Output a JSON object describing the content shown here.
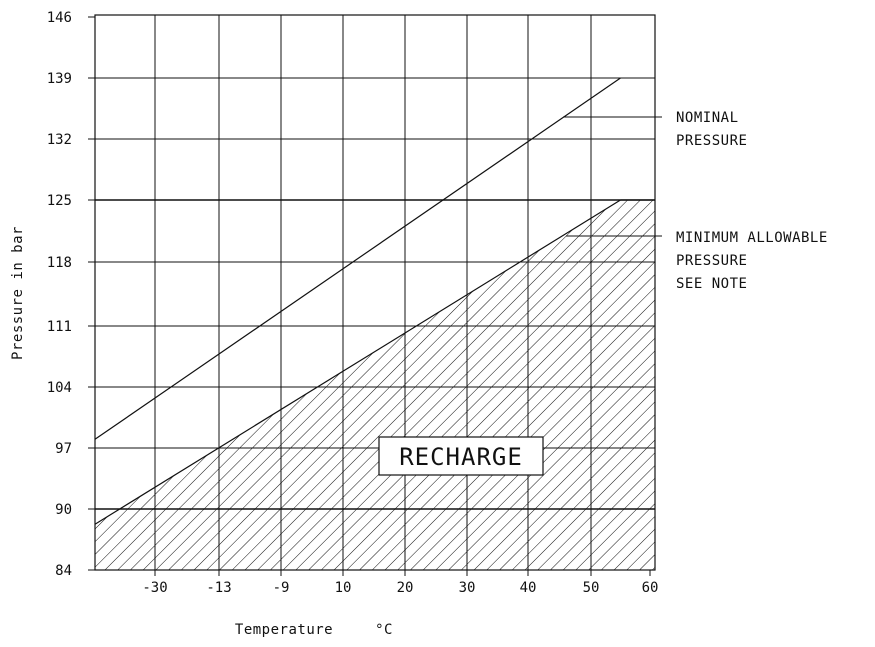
{
  "chart_data": {
    "type": "line",
    "title": "",
    "xlabel": "Temperature",
    "xunit": "°C",
    "ylabel": "Pressure in bar",
    "x_tick_labels": [
      "-30",
      "-13",
      "-9",
      "10",
      "20",
      "30",
      "40",
      "50",
      "60"
    ],
    "y_tick_labels": [
      "84",
      "90",
      "97",
      "104",
      "111",
      "118",
      "125",
      "132",
      "139",
      "146"
    ],
    "series": [
      {
        "label": "NOMINAL PRESSURE",
        "points": [
          [
            "",
            "98"
          ],
          [
            "55",
            "139"
          ]
        ]
      },
      {
        "label": "MINIMUM ALLOWABLE PRESSURE",
        "points": [
          [
            "",
            "88.5"
          ],
          [
            "55",
            "125"
          ]
        ]
      }
    ],
    "shaded_region": {
      "label": "RECHARGE",
      "below": "MINIMUM ALLOWABLE PRESSURE",
      "pattern": "hatched"
    },
    "annotations": {
      "nominal": [
        "NOMINAL",
        "PRESSURE"
      ],
      "minimum": [
        "MINIMUM ALLOWABLE",
        "PRESSURE",
        "SEE NOTE"
      ]
    },
    "grid": true,
    "legend": "none"
  }
}
